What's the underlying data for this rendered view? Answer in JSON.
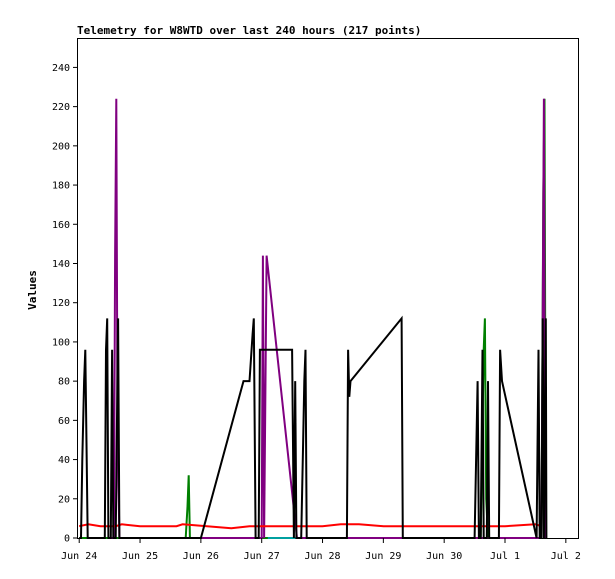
{
  "chart_data": {
    "type": "line",
    "title": "Telemetry for W8WTD over last 240 hours (217 points)",
    "xlabel": "",
    "ylabel": "Values",
    "x_ticks": [
      "Jun 24",
      "Jun 25",
      "Jun 26",
      "Jun 27",
      "Jun 28",
      "Jun 29",
      "Jun 30",
      "Jul 1",
      "Jul 2"
    ],
    "y_ticks": [
      0,
      20,
      40,
      60,
      80,
      100,
      120,
      140,
      160,
      180,
      200,
      220,
      240
    ],
    "xlim": [
      -0.02,
      8.2
    ],
    "ylim": [
      0,
      255
    ],
    "grid": false,
    "series": [
      {
        "color": "#008000",
        "points": [
          [
            0,
            0
          ],
          [
            0.5,
            0
          ],
          [
            0.55,
            0
          ],
          [
            1.75,
            0
          ],
          [
            1.78,
            16
          ],
          [
            1.8,
            32
          ],
          [
            1.82,
            0
          ],
          [
            2.5,
            0
          ],
          [
            3.0,
            0
          ],
          [
            5.0,
            0
          ],
          [
            6.6,
            0
          ],
          [
            6.65,
            96
          ],
          [
            6.67,
            112
          ],
          [
            6.69,
            20
          ],
          [
            6.72,
            0
          ],
          [
            7.4,
            0
          ],
          [
            7.6,
            0
          ],
          [
            7.63,
            176
          ],
          [
            7.65,
            224
          ],
          [
            7.67,
            0
          ]
        ]
      },
      {
        "color": "#00a0a0",
        "points": [
          [
            3.1,
            0
          ],
          [
            3.6,
            0
          ]
        ]
      },
      {
        "color": "#800080",
        "points": [
          [
            0.5,
            0
          ],
          [
            0.57,
            0
          ],
          [
            0.59,
            144
          ],
          [
            0.61,
            224
          ],
          [
            0.63,
            56
          ],
          [
            0.66,
            0
          ],
          [
            2.9,
            0
          ],
          [
            3.0,
            0
          ],
          [
            3.02,
            144
          ],
          [
            3.04,
            0
          ],
          [
            3.08,
            144
          ],
          [
            3.58,
            0
          ],
          [
            3.62,
            0
          ],
          [
            6.65,
            0
          ],
          [
            6.7,
            0
          ],
          [
            7.45,
            0
          ],
          [
            7.6,
            0
          ],
          [
            7.64,
            224
          ],
          [
            7.66,
            0
          ]
        ]
      },
      {
        "color": "#ff0000",
        "points": [
          [
            0,
            6
          ],
          [
            0.15,
            7
          ],
          [
            0.35,
            6
          ],
          [
            0.6,
            6
          ],
          [
            0.7,
            7
          ],
          [
            1.0,
            6
          ],
          [
            1.6,
            6
          ],
          [
            1.7,
            7
          ],
          [
            2.1,
            6
          ],
          [
            2.5,
            5
          ],
          [
            2.8,
            6
          ],
          [
            3.1,
            6
          ],
          [
            3.6,
            6
          ],
          [
            4.0,
            6
          ],
          [
            4.3,
            7
          ],
          [
            4.6,
            7
          ],
          [
            5.0,
            6
          ],
          [
            5.5,
            6
          ],
          [
            6.0,
            6
          ],
          [
            6.5,
            6
          ],
          [
            7.0,
            6
          ],
          [
            7.5,
            7
          ],
          [
            7.6,
            6
          ]
        ]
      },
      {
        "color": "#000000",
        "points": [
          [
            0,
            0
          ],
          [
            0.03,
            0
          ],
          [
            0.05,
            40
          ],
          [
            0.08,
            80
          ],
          [
            0.1,
            96
          ],
          [
            0.12,
            48
          ],
          [
            0.14,
            0
          ],
          [
            0.42,
            0
          ],
          [
            0.44,
            96
          ],
          [
            0.46,
            112
          ],
          [
            0.48,
            0
          ],
          [
            0.52,
            0
          ],
          [
            0.54,
            96
          ],
          [
            0.56,
            0
          ],
          [
            0.6,
            0
          ],
          [
            0.62,
            56
          ],
          [
            0.64,
            112
          ],
          [
            0.66,
            0
          ],
          [
            1.8,
            0
          ],
          [
            2.0,
            0
          ],
          [
            2.7,
            80
          ],
          [
            2.8,
            80
          ],
          [
            2.85,
            104
          ],
          [
            2.87,
            112
          ],
          [
            2.9,
            0
          ],
          [
            2.95,
            0
          ],
          [
            2.97,
            96
          ],
          [
            3.5,
            96
          ],
          [
            3.53,
            0
          ],
          [
            3.55,
            80
          ],
          [
            3.57,
            0
          ],
          [
            3.65,
            0
          ],
          [
            3.68,
            48
          ],
          [
            3.7,
            80
          ],
          [
            3.72,
            96
          ],
          [
            3.74,
            0
          ],
          [
            4.4,
            0
          ],
          [
            4.42,
            96
          ],
          [
            4.44,
            72
          ],
          [
            4.46,
            80
          ],
          [
            5.3,
            112
          ],
          [
            5.31,
            56
          ],
          [
            5.32,
            0
          ],
          [
            6.5,
            0
          ],
          [
            6.55,
            80
          ],
          [
            6.57,
            0
          ],
          [
            6.6,
            0
          ],
          [
            6.63,
            96
          ],
          [
            6.65,
            0
          ],
          [
            6.7,
            0
          ],
          [
            6.72,
            80
          ],
          [
            6.74,
            0
          ],
          [
            6.8,
            0
          ],
          [
            6.82,
            0
          ],
          [
            6.9,
            0
          ],
          [
            6.92,
            96
          ],
          [
            6.95,
            80
          ],
          [
            7.52,
            0
          ],
          [
            7.55,
            96
          ],
          [
            7.57,
            0
          ],
          [
            7.6,
            0
          ],
          [
            7.62,
            112
          ],
          [
            7.64,
            0
          ],
          [
            7.67,
            112
          ],
          [
            7.68,
            0
          ]
        ]
      }
    ]
  }
}
